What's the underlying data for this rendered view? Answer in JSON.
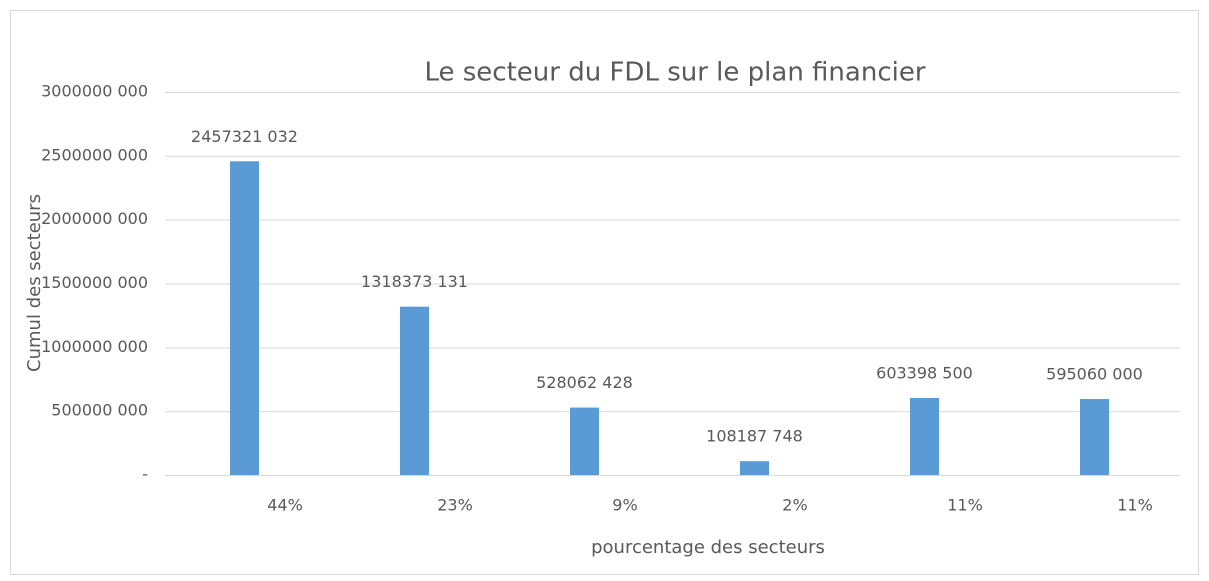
{
  "chart_data": {
    "type": "bar",
    "title": "Le secteur du FDL sur le plan financier",
    "x_label": "pourcentage des secteurs",
    "y_label": "Cumul des secteurs",
    "categories": [
      "44%",
      "23%",
      "9%",
      "2%",
      "11%",
      "11%"
    ],
    "values": [
      2457321032,
      1318373131,
      528062428,
      108187748,
      603398500,
      595060000
    ],
    "value_labels": [
      "2457321 032",
      "1318373 131",
      "528062 428",
      "108187 748",
      "603398 500",
      "595060 000"
    ],
    "color": "#5b9bd5",
    "ylim": [
      0,
      3000000000
    ],
    "yticks": [
      {
        "value": 0,
        "label": "-"
      },
      {
        "value": 500000000,
        "label": "500000 000"
      },
      {
        "value": 1000000000,
        "label": "1000000 000"
      },
      {
        "value": 1500000000,
        "label": "1500000 000"
      },
      {
        "value": 2000000000,
        "label": "2000000 000"
      },
      {
        "value": 2500000000,
        "label": "2500000 000"
      },
      {
        "value": 3000000000,
        "label": "3000000 000"
      }
    ],
    "grid": true
  }
}
